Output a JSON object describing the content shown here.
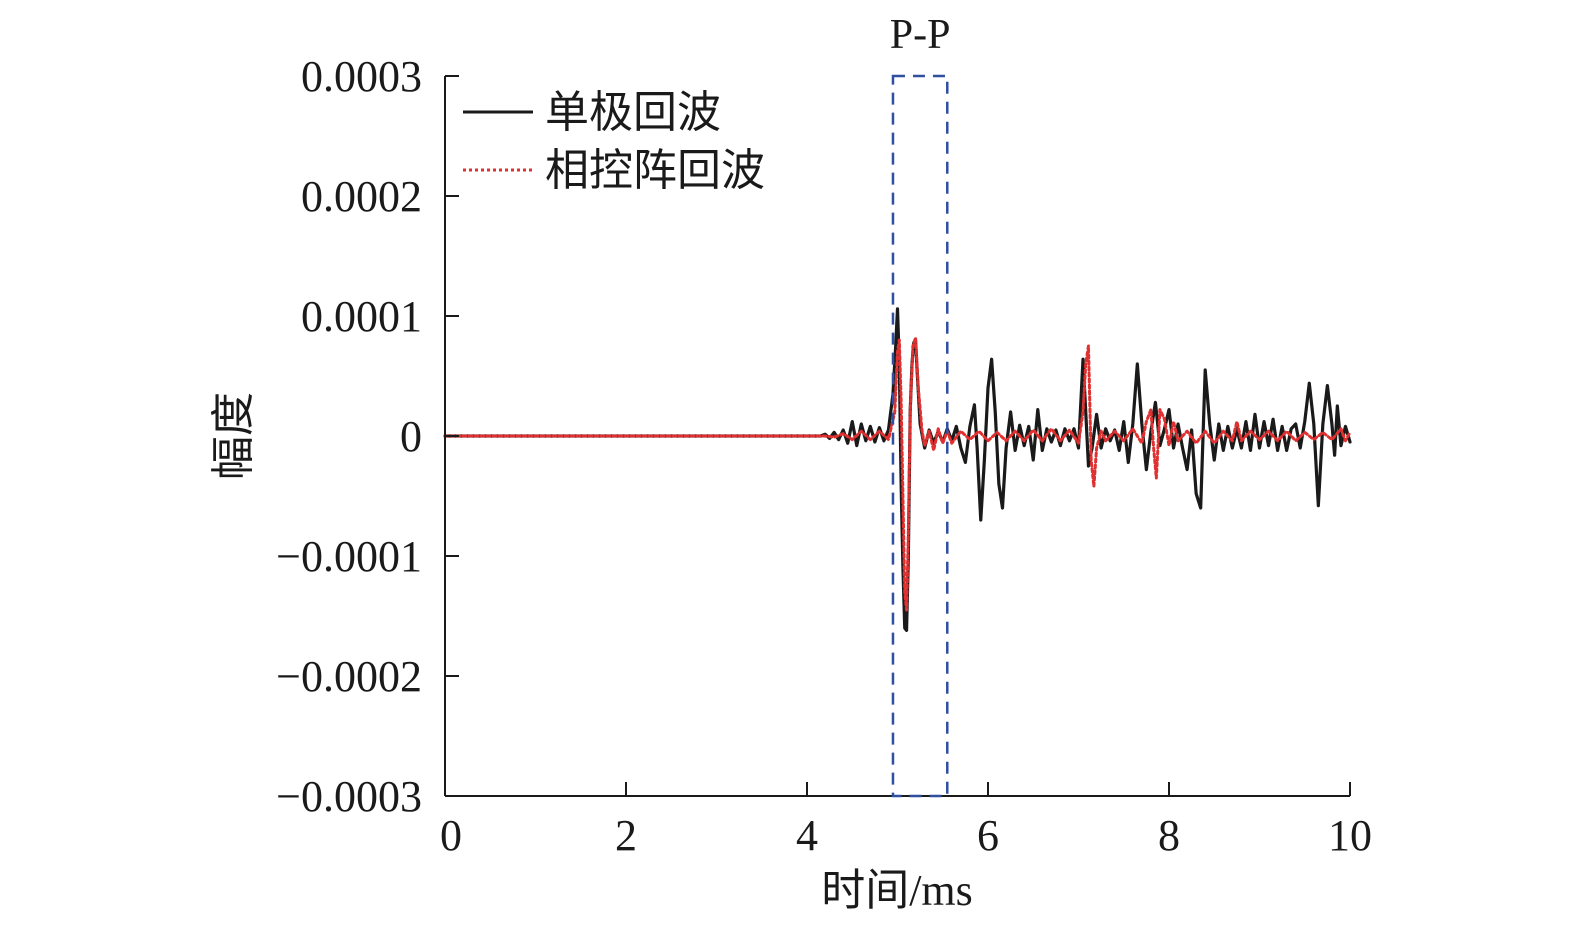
{
  "chart_data": {
    "type": "line",
    "title": "",
    "xlabel": "时间/ms",
    "ylabel": "幅度",
    "xlim": [
      0,
      10
    ],
    "ylim": [
      -0.0003,
      0.0003
    ],
    "x_ticks": [
      0,
      2,
      4,
      6,
      8,
      10
    ],
    "x_tick_labels": [
      "0",
      "2",
      "4",
      "6",
      "8",
      "10"
    ],
    "y_ticks": [
      0.0003,
      0.0002,
      0.0001,
      0,
      -0.0001,
      -0.0002,
      -0.0003
    ],
    "y_tick_labels": [
      "0.0003",
      "0.0002",
      "0.0001",
      "0",
      "−0.0001",
      "−0.0002",
      "−0.0003"
    ],
    "grid": false,
    "legend_position": "top-left",
    "annotation": {
      "label": "P-P",
      "x_range": [
        4.95,
        5.55
      ],
      "y_range": [
        -0.0003,
        0.0003
      ],
      "color": "#2f4f9f"
    },
    "series": [
      {
        "name": "单极回波",
        "color": "#1a1a1a",
        "line_style": "solid",
        "points": [
          [
            0,
            0
          ],
          [
            4.15,
            0
          ],
          [
            4.2,
            1.5e-06
          ],
          [
            4.25,
            -2e-06
          ],
          [
            4.3,
            3e-06
          ],
          [
            4.35,
            -3e-06
          ],
          [
            4.4,
            5e-06
          ],
          [
            4.45,
            -6e-06
          ],
          [
            4.5,
            1.2e-05
          ],
          [
            4.55,
            -8e-06
          ],
          [
            4.6,
            1e-05
          ],
          [
            4.65,
            -4e-06
          ],
          [
            4.7,
            8e-06
          ],
          [
            4.75,
            -5e-06
          ],
          [
            4.8,
            7e-06
          ],
          [
            4.85,
            -4e-06
          ],
          [
            4.9,
            5e-06
          ],
          [
            4.95,
            3.5e-05
          ],
          [
            4.98,
            7.5e-05
          ],
          [
            5.0,
            0.000106
          ],
          [
            5.02,
            6e-05
          ],
          [
            5.04,
            -4e-05
          ],
          [
            5.06,
            -0.00011
          ],
          [
            5.08,
            -0.00016
          ],
          [
            5.1,
            -0.000162
          ],
          [
            5.12,
            -0.0001
          ],
          [
            5.14,
            2e-05
          ],
          [
            5.16,
            6e-05
          ],
          [
            5.18,
            7.8e-05
          ],
          [
            5.2,
            7.9e-05
          ],
          [
            5.22,
            5e-05
          ],
          [
            5.25,
            1e-05
          ],
          [
            5.3,
            -1e-05
          ],
          [
            5.35,
            5e-06
          ],
          [
            5.4,
            -6e-06
          ],
          [
            5.45,
            4e-06
          ],
          [
            5.5,
            -5e-06
          ],
          [
            5.55,
            6e-06
          ],
          [
            5.6,
            -4e-06
          ],
          [
            5.65,
            8e-06
          ],
          [
            5.7,
            -1e-05
          ],
          [
            5.75,
            -2.2e-05
          ],
          [
            5.8,
            8e-06
          ],
          [
            5.85,
            2.6e-05
          ],
          [
            5.88,
            -1e-05
          ],
          [
            5.92,
            -7e-05
          ],
          [
            5.96,
            -2e-05
          ],
          [
            6.0,
            4e-05
          ],
          [
            6.04,
            6.4e-05
          ],
          [
            6.08,
            2e-05
          ],
          [
            6.12,
            -4e-05
          ],
          [
            6.16,
            -6e-05
          ],
          [
            6.2,
            -1e-05
          ],
          [
            6.25,
            2e-05
          ],
          [
            6.3,
            -1.2e-05
          ],
          [
            6.35,
            9e-06
          ],
          [
            6.4,
            -8e-06
          ],
          [
            6.45,
            8e-06
          ],
          [
            6.5,
            -2e-05
          ],
          [
            6.55,
            2.2e-05
          ],
          [
            6.6,
            -1.2e-05
          ],
          [
            6.65,
            6e-06
          ],
          [
            6.7,
            -5e-06
          ],
          [
            6.75,
            5e-06
          ],
          [
            6.8,
            -8e-06
          ],
          [
            6.85,
            6e-06
          ],
          [
            6.9,
            -4e-06
          ],
          [
            6.95,
            6e-06
          ],
          [
            7.0,
            -1e-05
          ],
          [
            7.05,
            6.4e-05
          ],
          [
            7.08,
            2e-05
          ],
          [
            7.11,
            -2.5e-05
          ],
          [
            7.15,
            -1e-05
          ],
          [
            7.2,
            1.8e-05
          ],
          [
            7.25,
            -1e-05
          ],
          [
            7.3,
            6e-06
          ],
          [
            7.35,
            -4e-06
          ],
          [
            7.4,
            5e-06
          ],
          [
            7.45,
            -1.2e-05
          ],
          [
            7.5,
            1.2e-05
          ],
          [
            7.55,
            -2.2e-05
          ],
          [
            7.6,
            1e-05
          ],
          [
            7.65,
            6e-05
          ],
          [
            7.7,
            1e-05
          ],
          [
            7.75,
            -2.8e-05
          ],
          [
            7.8,
            4e-06
          ],
          [
            7.85,
            2.8e-05
          ],
          [
            7.9,
            -8e-06
          ],
          [
            7.95,
            6e-06
          ],
          [
            8.0,
            2.2e-05
          ],
          [
            8.05,
            -1e-05
          ],
          [
            8.1,
            1e-05
          ],
          [
            8.15,
            -1e-05
          ],
          [
            8.2,
            -2.8e-05
          ],
          [
            8.25,
            5e-06
          ],
          [
            8.3,
            -4.8e-05
          ],
          [
            8.35,
            -6e-05
          ],
          [
            8.4,
            5.5e-05
          ],
          [
            8.45,
            1e-05
          ],
          [
            8.5,
            -2e-05
          ],
          [
            8.55,
            1e-05
          ],
          [
            8.6,
            -1.2e-05
          ],
          [
            8.65,
            8e-06
          ],
          [
            8.7,
            -1e-05
          ],
          [
            8.75,
            6e-06
          ],
          [
            8.8,
            -1e-05
          ],
          [
            8.85,
            1.2e-05
          ],
          [
            8.9,
            -1.2e-05
          ],
          [
            8.95,
            1.8e-05
          ],
          [
            9.0,
            -1e-05
          ],
          [
            9.05,
            1.2e-05
          ],
          [
            9.1,
            -8e-06
          ],
          [
            9.15,
            1.4e-05
          ],
          [
            9.2,
            -1.2e-05
          ],
          [
            9.25,
            8e-06
          ],
          [
            9.3,
            -1.2e-05
          ],
          [
            9.35,
            6e-06
          ],
          [
            9.4,
            1e-05
          ],
          [
            9.45,
            -1e-05
          ],
          [
            9.5,
            1.2e-05
          ],
          [
            9.55,
            4.4e-05
          ],
          [
            9.6,
            1e-05
          ],
          [
            9.65,
            -5.8e-05
          ],
          [
            9.7,
            1e-05
          ],
          [
            9.75,
            4.2e-05
          ],
          [
            9.8,
            1e-05
          ],
          [
            9.83,
            -1.6e-05
          ],
          [
            9.86,
            2.5e-05
          ],
          [
            9.9,
            -8e-06
          ],
          [
            9.95,
            8e-06
          ],
          [
            10.0,
            -5e-06
          ]
        ]
      },
      {
        "name": "相控阵回波",
        "color": "#e03030",
        "line_style": "dotted",
        "points": [
          [
            0,
            0
          ],
          [
            4.2,
            0
          ],
          [
            4.3,
            -1e-06
          ],
          [
            4.4,
            2e-06
          ],
          [
            4.5,
            -3e-06
          ],
          [
            4.6,
            4e-06
          ],
          [
            4.7,
            -3e-06
          ],
          [
            4.8,
            4e-06
          ],
          [
            4.9,
            -3e-06
          ],
          [
            4.97,
            2e-05
          ],
          [
            5.0,
            7e-05
          ],
          [
            5.02,
            8e-05
          ],
          [
            5.04,
            3e-05
          ],
          [
            5.06,
            -5e-05
          ],
          [
            5.08,
            -0.00013
          ],
          [
            5.1,
            -0.000145
          ],
          [
            5.12,
            -8e-05
          ],
          [
            5.14,
            2e-05
          ],
          [
            5.17,
            7.5e-05
          ],
          [
            5.2,
            8.2e-05
          ],
          [
            5.23,
            4e-05
          ],
          [
            5.27,
            5e-06
          ],
          [
            5.3,
            -8e-06
          ],
          [
            5.35,
            4e-06
          ],
          [
            5.4,
            -1.2e-05
          ],
          [
            5.45,
            6e-06
          ],
          [
            5.5,
            -6e-06
          ],
          [
            5.55,
            4e-06
          ],
          [
            5.6,
            -6e-06
          ],
          [
            5.7,
            4e-06
          ],
          [
            5.8,
            -3e-06
          ],
          [
            5.9,
            4e-06
          ],
          [
            6.0,
            -4e-06
          ],
          [
            6.1,
            3e-06
          ],
          [
            6.2,
            -4e-06
          ],
          [
            6.3,
            4e-06
          ],
          [
            6.4,
            -4e-06
          ],
          [
            6.5,
            5e-06
          ],
          [
            6.6,
            -4e-06
          ],
          [
            6.7,
            6e-06
          ],
          [
            6.8,
            -4e-06
          ],
          [
            6.9,
            5e-06
          ],
          [
            7.0,
            -6e-06
          ],
          [
            7.05,
            2e-05
          ],
          [
            7.08,
            6e-05
          ],
          [
            7.11,
            7.5e-05
          ],
          [
            7.14,
            -2e-05
          ],
          [
            7.17,
            -4.2e-05
          ],
          [
            7.2,
            -1e-05
          ],
          [
            7.25,
            4e-06
          ],
          [
            7.3,
            -4e-06
          ],
          [
            7.4,
            4e-06
          ],
          [
            7.5,
            -4e-06
          ],
          [
            7.6,
            6e-06
          ],
          [
            7.7,
            -6e-06
          ],
          [
            7.75,
            1.2e-05
          ],
          [
            7.8,
            2.2e-05
          ],
          [
            7.83,
            -1e-05
          ],
          [
            7.86,
            -3.5e-05
          ],
          [
            7.9,
            2.2e-05
          ],
          [
            7.95,
            1.4e-05
          ],
          [
            8.0,
            -8e-06
          ],
          [
            8.05,
            1.2e-05
          ],
          [
            8.1,
            -4e-06
          ],
          [
            8.2,
            4e-06
          ],
          [
            8.3,
            -6e-06
          ],
          [
            8.4,
            4e-06
          ],
          [
            8.5,
            -6e-06
          ],
          [
            8.6,
            4e-06
          ],
          [
            8.7,
            -4e-06
          ],
          [
            8.75,
            1.2e-05
          ],
          [
            8.8,
            -4e-06
          ],
          [
            8.9,
            4e-06
          ],
          [
            9.0,
            -3e-06
          ],
          [
            9.1,
            4e-06
          ],
          [
            9.2,
            -4e-06
          ],
          [
            9.3,
            4e-06
          ],
          [
            9.4,
            -4e-06
          ],
          [
            9.5,
            3e-06
          ],
          [
            9.6,
            -3e-06
          ],
          [
            9.7,
            3e-06
          ],
          [
            9.8,
            -3e-06
          ],
          [
            9.9,
            6e-06
          ],
          [
            9.95,
            -4e-06
          ],
          [
            10.0,
            3e-06
          ]
        ]
      }
    ]
  }
}
